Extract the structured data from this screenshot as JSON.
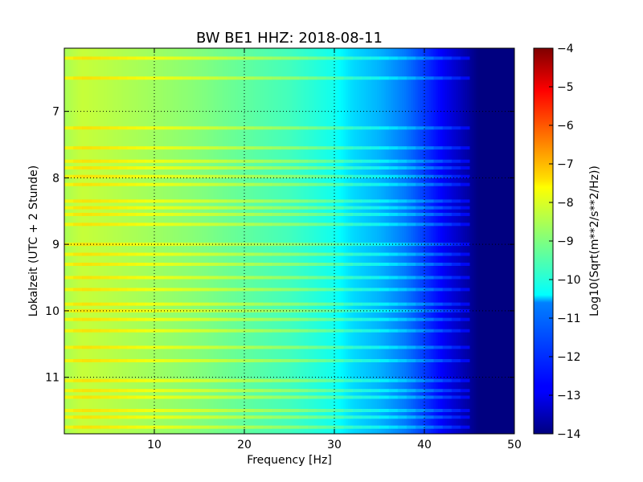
{
  "chart_data": {
    "type": "heatmap",
    "title": "BW BE1 HHZ: 2018-08-11",
    "xlabel": "Frequency [Hz]",
    "ylabel": "Lokalzeit (UTC + 2 Stunde)",
    "colorbar_label": "Log10(Sqrt(m**2/s**2/Hz))",
    "colormap": "jet",
    "xlim": [
      0,
      50
    ],
    "ylim": [
      11.85,
      6.05
    ],
    "clim": [
      -14,
      -4
    ],
    "grid": true,
    "x_ticks": [
      10,
      20,
      30,
      40,
      50
    ],
    "x_tick_labels": [
      "10",
      "20",
      "30",
      "40",
      "50"
    ],
    "y_ticks": [
      7,
      8,
      9,
      10,
      11
    ],
    "y_tick_labels": [
      "7",
      "8",
      "9",
      "10",
      "11"
    ],
    "colorbar_ticks": [
      -4,
      -5,
      -6,
      -7,
      -8,
      -9,
      -10,
      -11,
      -12,
      -13,
      -14
    ],
    "colorbar_tick_labels": [
      "−4",
      "−5",
      "−6",
      "−7",
      "−8",
      "−9",
      "−10",
      "−11",
      "−12",
      "−13",
      "−14"
    ],
    "spectrum_profile": {
      "frequency_hz": [
        0,
        2,
        4,
        8,
        14,
        20,
        25,
        30,
        32,
        35,
        38,
        40,
        42,
        44,
        46,
        50
      ],
      "level": [
        -8.6,
        -8.3,
        -8.4,
        -8.6,
        -8.9,
        -9.3,
        -9.6,
        -10.1,
        -10.6,
        -11.0,
        -11.6,
        -12.2,
        -12.8,
        -13.4,
        -14.0,
        -14.0
      ]
    },
    "bright_bands_hour": [
      6.2,
      6.5,
      7.25,
      7.55,
      7.75,
      7.85,
      7.98,
      8.1,
      8.35,
      8.45,
      8.55,
      8.7,
      9.0,
      9.15,
      9.3,
      9.5,
      9.68,
      9.9,
      10.0,
      10.13,
      10.3,
      10.55,
      10.75,
      11.05,
      11.2,
      11.3,
      11.5,
      11.6,
      11.75
    ]
  }
}
